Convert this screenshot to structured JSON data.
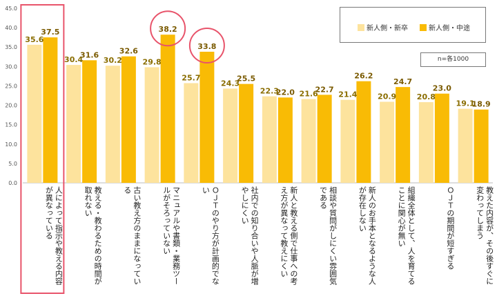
{
  "chart_data": {
    "type": "bar",
    "title": "",
    "xlabel": "",
    "ylabel": "",
    "ylim": [
      0,
      45
    ],
    "yticks": [
      "0.0",
      "5.0",
      "10.0",
      "15.0",
      "20.0",
      "25.0",
      "30.0",
      "35.0",
      "40.0",
      "45.0"
    ],
    "categories": [
      "人によって指示や教える内容が異なっている",
      "教える・教わるための時間が取れない",
      "古い教え方のままになっている",
      "マニュアルや書類・業務ツールがそろっていない",
      "ＯＪＴのやり方が計画的でない",
      "社内での知り合いや人脈が増やしにくい",
      "新人と教える側で仕事への考え方が異なって教えにくい",
      "相談や質問がしにくい雰囲気である",
      "新人のお手本となるような人が存在しない",
      "組織全体として、人を育てることに関心が無い",
      "ＯＪＴの期間が短すぎる",
      "教えた内容が、その後すぐに変わってしまう"
    ],
    "series": [
      {
        "name": "新人側・新卒",
        "color": "#fde39d",
        "values": [
          35.6,
          30.4,
          30.2,
          29.8,
          25.7,
          24.3,
          22.3,
          21.6,
          21.4,
          20.9,
          20.8,
          19.1
        ]
      },
      {
        "name": "新人側・中途",
        "color": "#f9bb05",
        "values": [
          37.5,
          31.6,
          32.6,
          38.2,
          33.8,
          25.5,
          22.0,
          22.7,
          26.2,
          24.7,
          23.0,
          18.9
        ]
      }
    ],
    "value_labels": [
      [
        "35.6",
        "30.4",
        "30.2",
        "29.8",
        "25.7",
        "24.3",
        "22.3",
        "21.6",
        "21.4",
        "20.9",
        "20.8",
        "19.1"
      ],
      [
        "37.5",
        "31.6",
        "32.6",
        "38.2",
        "33.8",
        "25.5",
        "22.0",
        "22.7",
        "26.2",
        "24.7",
        "23.0",
        "18.9"
      ]
    ],
    "highlighted_category": "人によって指示や教える内容が異なっている",
    "circled_values": [
      "38.2",
      "33.8"
    ],
    "note": "n=各1000"
  }
}
